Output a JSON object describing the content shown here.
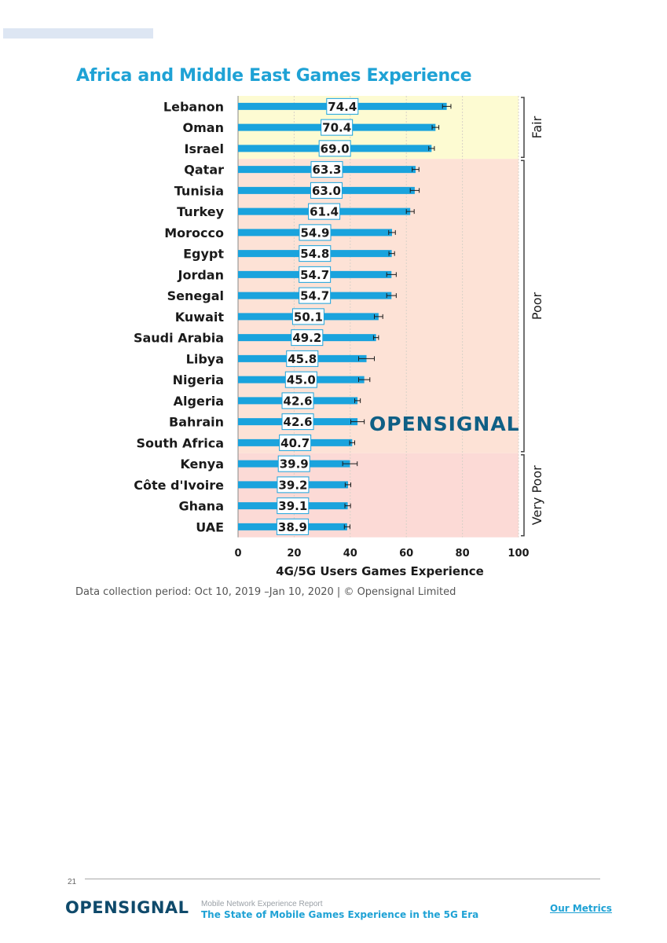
{
  "page": {
    "title": "Africa and Middle East Games Experience",
    "caption": "Data collection period: Oct 10, 2019 –Jan 10, 2020 | © Opensignal Limited",
    "page_number": "21",
    "footer": {
      "logo": "OPENSIGNAL",
      "report_line1": "Mobile Network Experience Report",
      "report_line2": "The State of Mobile Games Experience in the 5G Era",
      "link": "Our Metrics"
    }
  },
  "chart_data": {
    "type": "bar",
    "orientation": "horizontal",
    "title": "Africa and Middle East Games Experience",
    "xlabel": "4G/5G Users Games Experience",
    "xlim": [
      0,
      100
    ],
    "xticks": [
      0,
      20,
      40,
      60,
      80,
      100
    ],
    "grid": true,
    "watermark": "OPENSIGNAL",
    "categories": [
      "Lebanon",
      "Oman",
      "Israel",
      "Qatar",
      "Tunisia",
      "Turkey",
      "Morocco",
      "Egypt",
      "Jordan",
      "Senegal",
      "Kuwait",
      "Saudi Arabia",
      "Libya",
      "Nigeria",
      "Algeria",
      "Bahrain",
      "South Africa",
      "Kenya",
      "Côte d'Ivoire",
      "Ghana",
      "UAE"
    ],
    "values": [
      74.4,
      70.4,
      69.0,
      63.3,
      63.0,
      61.4,
      54.9,
      54.8,
      54.7,
      54.7,
      50.1,
      49.2,
      45.8,
      45.0,
      42.6,
      42.6,
      40.7,
      39.9,
      39.2,
      39.1,
      38.9
    ],
    "value_labels": [
      "74.4",
      "70.4",
      "69.0",
      "63.3",
      "63.0",
      "61.4",
      "54.9",
      "54.8",
      "54.7",
      "54.7",
      "50.1",
      "49.2",
      "45.8",
      "45.0",
      "42.6",
      "42.6",
      "40.7",
      "39.9",
      "39.2",
      "39.1",
      "38.9"
    ],
    "errors": [
      1.5,
      1.2,
      1.0,
      1.2,
      1.6,
      1.4,
      1.2,
      1.0,
      1.7,
      1.7,
      1.5,
      0.9,
      2.8,
      2.0,
      1.0,
      2.4,
      0.9,
      2.6,
      1.0,
      1.0,
      1.0
    ],
    "bands": [
      {
        "label": "Fair",
        "from_index": 0,
        "to_index": 2,
        "color": "#fdfbd2"
      },
      {
        "label": "Poor",
        "from_index": 3,
        "to_index": 16,
        "color": "#fde2d6"
      },
      {
        "label": "Very Poor",
        "from_index": 17,
        "to_index": 20,
        "color": "#fcdad6"
      }
    ],
    "bar_color": "#1aa3dd",
    "label_box_border": "#1aa3dd"
  }
}
